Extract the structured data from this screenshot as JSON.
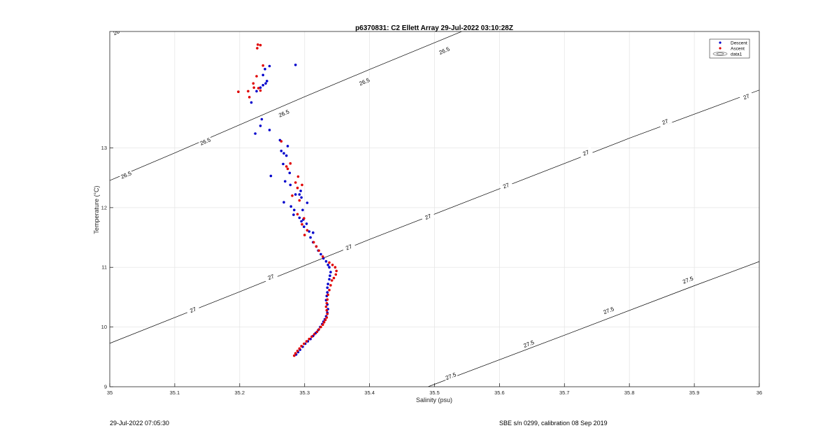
{
  "chart_data": {
    "type": "scatter",
    "title": "p6370831: C2 Ellett Array 29-Jul-2022 03:10:28Z",
    "xlabel": "Salinity (psu)",
    "ylabel": "Temperature (°C)",
    "xlim": [
      35,
      36
    ],
    "ylim": [
      9,
      14.95
    ],
    "xticks": [
      35,
      35.1,
      35.2,
      35.3,
      35.4,
      35.5,
      35.6,
      35.7,
      35.8,
      35.9,
      36
    ],
    "xtick_labels": [
      "35",
      "35.1",
      "35.2",
      "35.3",
      "35.4",
      "35.5",
      "35.6",
      "35.7",
      "35.8",
      "35.9",
      "36"
    ],
    "yticks": [
      9,
      10,
      11,
      12,
      13
    ],
    "ytick_labels": [
      "9",
      "10",
      "11",
      "12",
      "13"
    ],
    "grid": true,
    "legend_position": "top-right",
    "legend": [
      "Descent",
      "Ascent",
      "data1"
    ],
    "series": [
      {
        "name": "Descent",
        "color": "#0000cc",
        "x": [
          35.286,
          35.246,
          35.239,
          35.236,
          35.242,
          35.24,
          35.236,
          35.232,
          35.226,
          35.218,
          35.234,
          35.232,
          35.246,
          35.224,
          35.262,
          35.274,
          35.264,
          35.268,
          35.272,
          35.267,
          35.277,
          35.248,
          35.27,
          35.278,
          35.268,
          35.286,
          35.294,
          35.292,
          35.295,
          35.304,
          35.297,
          35.279,
          35.284,
          35.283,
          35.292,
          35.298,
          35.295,
          35.303,
          35.299,
          35.307,
          35.313,
          35.309,
          35.313,
          35.318,
          35.321,
          35.325,
          35.329,
          35.333,
          35.336,
          35.338,
          35.34,
          35.339,
          35.338,
          35.336,
          35.335,
          35.335,
          35.334,
          35.333,
          35.335,
          35.336,
          35.335,
          35.333,
          35.331,
          35.329,
          35.327,
          35.324,
          35.321,
          35.317,
          35.313,
          35.309,
          35.305,
          35.301,
          35.297,
          35.293,
          35.29,
          35.287
        ],
        "y": [
          14.39,
          14.37,
          14.32,
          14.22,
          14.12,
          14.08,
          14.05,
          14.01,
          13.95,
          13.76,
          13.48,
          13.37,
          13.3,
          13.24,
          13.13,
          13.03,
          12.95,
          12.91,
          12.87,
          12.73,
          12.58,
          12.53,
          12.44,
          12.38,
          12.09,
          12.22,
          12.28,
          12.22,
          12.17,
          12.08,
          11.96,
          12.02,
          11.96,
          11.88,
          11.83,
          11.8,
          11.77,
          11.73,
          11.68,
          11.6,
          11.58,
          11.5,
          11.42,
          11.35,
          11.28,
          11.22,
          11.15,
          11.1,
          11.04,
          11.0,
          10.92,
          10.86,
          10.8,
          10.72,
          10.66,
          10.58,
          10.52,
          10.45,
          10.38,
          10.3,
          10.24,
          10.18,
          10.13,
          10.09,
          10.05,
          10.0,
          9.95,
          9.9,
          9.85,
          9.8,
          9.76,
          9.72,
          9.67,
          9.62,
          9.58,
          9.54
        ]
      },
      {
        "name": "Ascent",
        "color": "#e00000",
        "x": [
          35.232,
          35.228,
          35.227,
          35.236,
          35.226,
          35.221,
          35.222,
          35.229,
          35.232,
          35.213,
          35.198,
          35.215,
          35.264,
          35.278,
          35.272,
          35.274,
          35.29,
          35.286,
          35.296,
          35.289,
          35.281,
          35.292,
          35.289,
          35.299,
          35.296,
          35.304,
          35.3,
          35.314,
          35.318,
          35.322,
          35.328,
          35.338,
          35.343,
          35.347,
          35.349,
          35.348,
          35.345,
          35.342,
          35.34,
          35.338,
          35.336,
          35.335,
          35.334,
          35.333,
          35.334,
          35.335,
          35.334,
          35.332,
          35.33,
          35.328,
          35.325,
          35.322,
          35.319,
          35.315,
          35.311,
          35.307,
          35.303,
          35.299,
          35.295,
          35.292,
          35.289,
          35.286,
          35.284
        ],
        "y": [
          14.72,
          14.73,
          14.67,
          14.38,
          14.2,
          14.08,
          14.01,
          14.0,
          13.96,
          13.95,
          13.94,
          13.85,
          13.11,
          12.74,
          12.69,
          12.65,
          12.52,
          12.42,
          12.38,
          12.33,
          12.2,
          12.12,
          11.89,
          11.82,
          11.72,
          11.62,
          11.54,
          11.42,
          11.35,
          11.28,
          11.18,
          11.08,
          11.04,
          11.0,
          10.94,
          10.88,
          10.82,
          10.78,
          10.7,
          10.62,
          10.54,
          10.46,
          10.4,
          10.34,
          10.28,
          10.22,
          10.16,
          10.12,
          10.08,
          10.04,
          10.0,
          9.96,
          9.92,
          9.88,
          9.84,
          9.8,
          9.76,
          9.72,
          9.68,
          9.64,
          9.6,
          9.56,
          9.52
        ]
      }
    ],
    "contours": [
      {
        "level": "26",
        "points": [
          [
            35.0,
            14.954
          ],
          [
            35.1,
            15.465
          ]
        ],
        "labels": [
          [
            35.01,
            14.94
          ]
        ]
      },
      {
        "level": "26.5",
        "points": [
          [
            35.0,
            12.454
          ],
          [
            35.1,
            12.915
          ],
          [
            35.2,
            13.388
          ],
          [
            35.3,
            13.857
          ],
          [
            35.4,
            14.314
          ],
          [
            35.5,
            14.762
          ],
          [
            35.6,
            15.211
          ]
        ],
        "labels": [
          [
            35.025,
            12.55
          ],
          [
            35.147,
            13.11
          ],
          [
            35.268,
            13.58
          ],
          [
            35.392,
            14.11
          ],
          [
            35.515,
            14.63
          ],
          [
            35.638,
            15.11
          ]
        ]
      },
      {
        "level": "27",
        "points": [
          [
            35.0,
            9.727
          ],
          [
            35.2,
            10.591
          ],
          [
            35.4,
            11.468
          ],
          [
            35.6,
            12.316
          ],
          [
            35.8,
            13.163
          ],
          [
            36.0,
            13.968
          ]
        ],
        "labels": [
          [
            35.128,
            10.29
          ],
          [
            35.248,
            10.84
          ],
          [
            35.368,
            11.34
          ],
          [
            35.49,
            11.85
          ],
          [
            35.61,
            12.37
          ],
          [
            35.733,
            12.92
          ],
          [
            35.855,
            13.44
          ],
          [
            35.98,
            13.86
          ]
        ]
      },
      {
        "level": "27.5",
        "points": [
          [
            35.49,
            9.0
          ],
          [
            35.7,
            9.863
          ],
          [
            35.9,
            10.693
          ],
          [
            36.0,
            11.096
          ]
        ],
        "labels": [
          [
            35.525,
            9.18
          ],
          [
            35.645,
            9.72
          ],
          [
            35.768,
            10.28
          ],
          [
            35.89,
            10.79
          ]
        ]
      }
    ]
  },
  "footer": {
    "left": "29-Jul-2022 07:05:30",
    "right": "SBE s/n 0299, calibration 08 Sep 2019"
  },
  "colors": {
    "descent": "#0000cc",
    "ascent": "#e00000",
    "contour": "#000000",
    "grid": "#e6e6e6"
  }
}
